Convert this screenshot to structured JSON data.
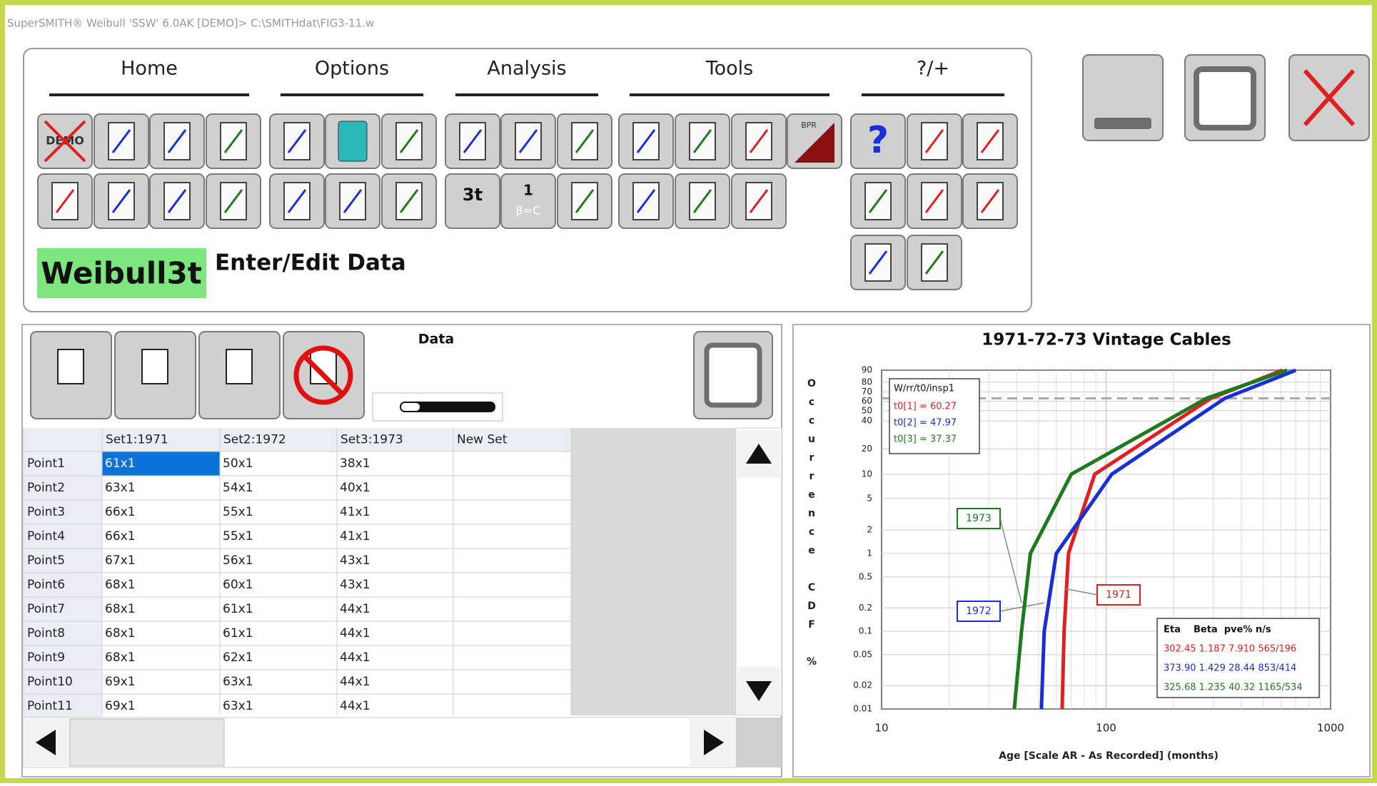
{
  "window": {
    "title": "SuperSMITH® Weibull 'SSW'  6.0AK [DEMO]> C:\\SMITHdat\\FIG3-11.w"
  },
  "ribbon": {
    "tabs": [
      "Home",
      "Options",
      "Analysis",
      "Tools",
      "?/+"
    ],
    "icon_texts": {
      "demo": "DEMO",
      "three_t": "3t",
      "fixed_beta_top": "1",
      "fixed_beta": "β=C",
      "bpr": "BPR",
      "help": "?"
    },
    "mode": "Weibull3t",
    "hint": "Enter/Edit Data"
  },
  "data_panel": {
    "title": "Data",
    "table": {
      "columns": [
        "Set1:1971",
        "Set2:1972",
        "Set3:1973",
        "New Set"
      ],
      "rows": [
        {
          "label": "Point1",
          "cells": [
            "61x1",
            "50x1",
            "38x1"
          ]
        },
        {
          "label": "Point2",
          "cells": [
            "63x1",
            "54x1",
            "40x1"
          ]
        },
        {
          "label": "Point3",
          "cells": [
            "66x1",
            "55x1",
            "41x1"
          ]
        },
        {
          "label": "Point4",
          "cells": [
            "66x1",
            "55x1",
            "41x1"
          ]
        },
        {
          "label": "Point5",
          "cells": [
            "67x1",
            "56x1",
            "43x1"
          ]
        },
        {
          "label": "Point6",
          "cells": [
            "68x1",
            "60x1",
            "43x1"
          ]
        },
        {
          "label": "Point7",
          "cells": [
            "68x1",
            "61x1",
            "44x1"
          ]
        },
        {
          "label": "Point8",
          "cells": [
            "68x1",
            "61x1",
            "44x1"
          ]
        },
        {
          "label": "Point9",
          "cells": [
            "68x1",
            "62x1",
            "44x1"
          ]
        },
        {
          "label": "Point10",
          "cells": [
            "69x1",
            "63x1",
            "44x1"
          ]
        },
        {
          "label": "Point11",
          "cells": [
            "69x1",
            "63x1",
            "44x1"
          ]
        }
      ]
    }
  },
  "chart_data": {
    "type": "line",
    "title": "1971-72-73 Vintage Cables",
    "x_label": "Age [Scale AR - As Recorded] (months)",
    "y_label": "Occurrence CDF %",
    "x_scale": "log",
    "y_scale": "weibull",
    "grid": true,
    "xlim": [
      10,
      1000
    ],
    "xticks": [
      10,
      100,
      1000
    ],
    "ylim": [
      0.01,
      90
    ],
    "yticks": [
      0.01,
      0.02,
      0.05,
      0.1,
      0.2,
      0.5,
      1,
      2,
      5,
      10,
      20,
      40,
      50,
      60,
      70,
      80,
      90
    ],
    "reference_line": 63.2,
    "series": [
      {
        "name": "1971",
        "color": "#e02020",
        "x": [
          63.7,
          65,
          68,
          89,
          293,
          610
        ],
        "values": [
          0.01,
          0.1,
          1,
          10,
          63.2,
          90
        ]
      },
      {
        "name": "1972",
        "color": "#1a2ed8",
        "x": [
          51.5,
          53,
          60,
          106,
          338,
          700
        ],
        "values": [
          0.01,
          0.1,
          1,
          10,
          63.2,
          90
        ]
      },
      {
        "name": "1973",
        "color": "#1e7a1e",
        "x": [
          39,
          42,
          46,
          70,
          280,
          640
        ],
        "values": [
          0.01,
          0.1,
          1,
          10,
          63.2,
          90
        ]
      }
    ],
    "fit_legend": {
      "title": "W/rr/t0/insp1",
      "items": [
        "t0[1] = 60.27",
        "t0[2] = 47.97",
        "t0[3] = 37.37"
      ]
    },
    "stats": {
      "header": "Eta    Beta  pve% n/s",
      "rows": [
        "302.45 1.187 7.910 565/196",
        "373.90 1.429 28.44 853/414",
        "325.68 1.235 40.32 1165/534"
      ]
    }
  }
}
